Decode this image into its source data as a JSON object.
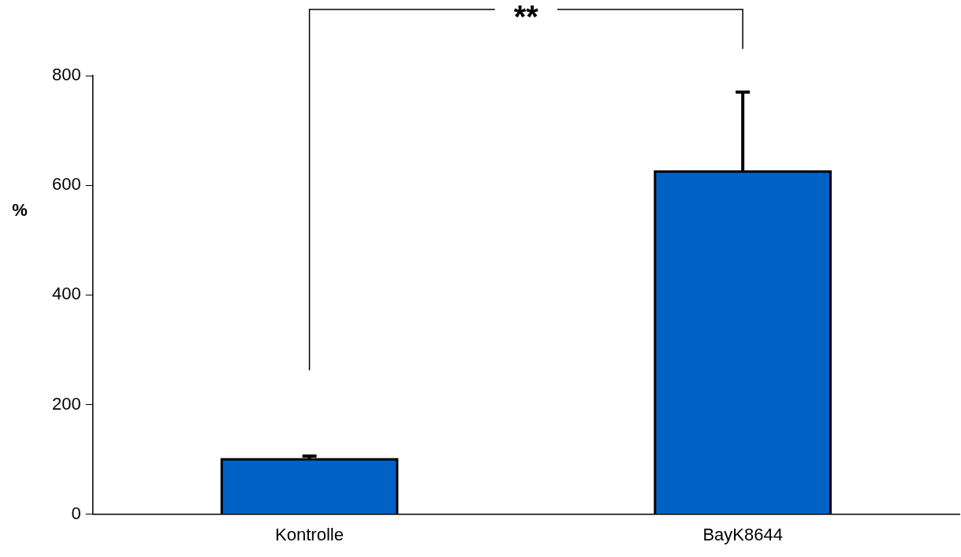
{
  "chart_data": {
    "type": "bar",
    "ylabel": "%",
    "categories": [
      "Kontrolle",
      "BayK8644"
    ],
    "values": [
      100,
      625
    ],
    "errors": [
      [
        100,
        106
      ],
      [
        625,
        770
      ]
    ],
    "color": "#0062c4",
    "ylim": [
      0,
      800
    ],
    "yticks": [
      0,
      200,
      400,
      600,
      800
    ],
    "grid": false,
    "legend": false,
    "annotations": [
      "**"
    ]
  }
}
